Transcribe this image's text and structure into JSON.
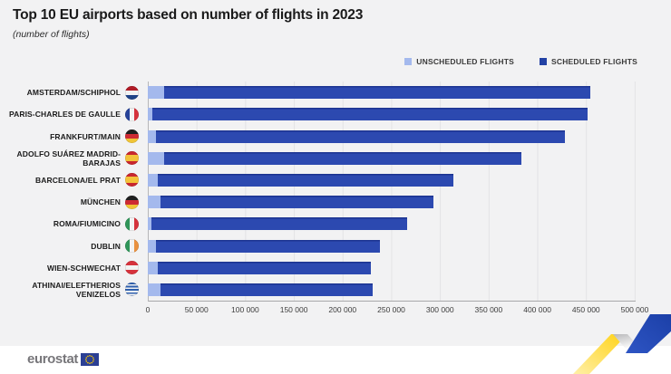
{
  "page": {
    "title": "Top 10 EU airports based on number of flights in 2023",
    "subtitle": "(number of flights)"
  },
  "legend": {
    "items": [
      {
        "label": "UNSCHEDULED FLIGHTS",
        "color": "#a4b9ed"
      },
      {
        "label": "SCHEDULED FLIGHTS",
        "color": "#2342a5"
      }
    ]
  },
  "chart_data": {
    "type": "bar",
    "orientation": "horizontal",
    "stacked": true,
    "title": "Top 10 EU airports based on number of flights in 2023",
    "ylabel": "",
    "xlabel": "number of flights",
    "categories": [
      "AMSTERDAM/SCHIPHOL",
      "PARIS-CHARLES DE GAULLE",
      "FRANKFURT/MAIN",
      "ADOLFO SUÁREZ MADRID-BARAJAS",
      "BARCELONA/EL PRAT",
      "MÜNCHEN",
      "ROMA/FIUMICINO",
      "DUBLIN",
      "WIEN-SCHWECHAT",
      "ATHINAI/ELEFTHERIOS VENIZELOS"
    ],
    "country_flags": [
      "nl",
      "fr",
      "de",
      "es",
      "es",
      "de",
      "it",
      "ie",
      "at",
      "gr"
    ],
    "series": [
      {
        "name": "UNSCHEDULED FLIGHTS",
        "values": [
          17000,
          5000,
          8000,
          17000,
          10000,
          13000,
          4000,
          8000,
          10000,
          13000
        ]
      },
      {
        "name": "SCHEDULED FLIGHTS",
        "values": [
          437000,
          447000,
          420000,
          367000,
          304000,
          280000,
          262000,
          230000,
          219000,
          218000
        ]
      }
    ],
    "totals": [
      454000,
      452000,
      428000,
      384000,
      314000,
      293000,
      266000,
      238000,
      229000,
      231000
    ],
    "xlim": [
      0,
      500000
    ],
    "x_ticks": [
      "0",
      "50 000",
      "100 000",
      "150 000",
      "200 000",
      "250 000",
      "300 000",
      "350 000",
      "400 000",
      "450 000",
      "500 000"
    ],
    "grid": "vertical",
    "legend_position": "top-right",
    "colors": {
      "unscheduled": "#a4b9ed",
      "scheduled": "#2c49b0"
    }
  },
  "footer": {
    "logo_text": "eurostat"
  }
}
